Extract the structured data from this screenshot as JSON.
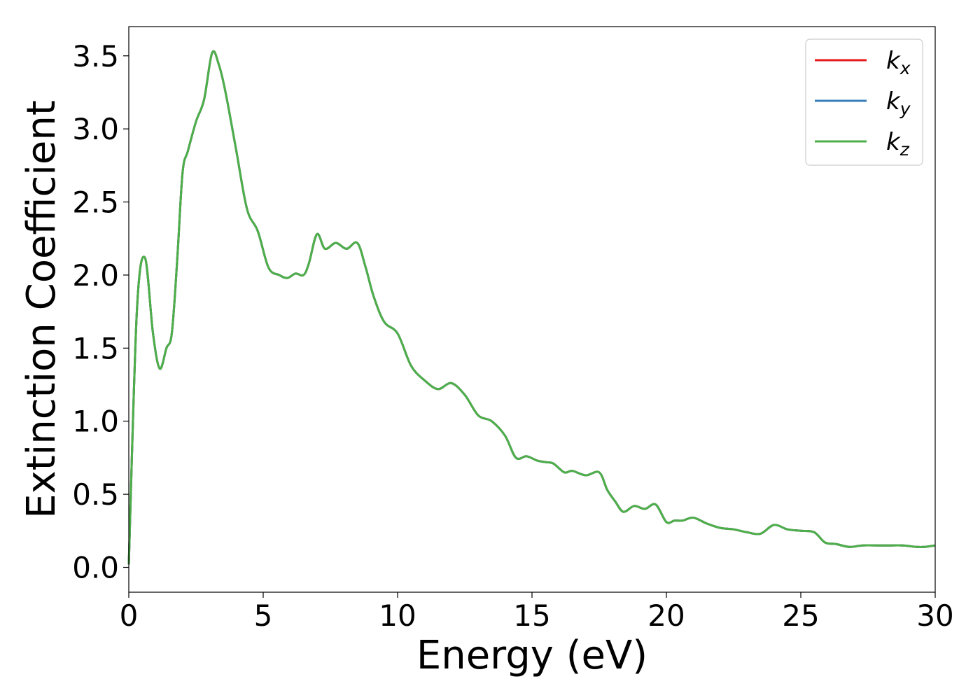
{
  "chart_data": {
    "type": "line",
    "title": "",
    "xlabel": "Energy (eV)",
    "ylabel": "Extinction Coefficient",
    "xlim": [
      0,
      30
    ],
    "ylim": [
      -0.17,
      3.7
    ],
    "xticks": [
      0,
      5,
      10,
      15,
      20,
      25,
      30
    ],
    "xtick_labels": [
      "0",
      "5",
      "10",
      "15",
      "20",
      "25",
      "30"
    ],
    "yticks": [
      0.0,
      0.5,
      1.0,
      1.5,
      2.0,
      2.5,
      3.0,
      3.5
    ],
    "ytick_labels": [
      "0.0",
      "0.5",
      "1.0",
      "1.5",
      "2.0",
      "2.5",
      "3.0",
      "3.5"
    ],
    "grid": false,
    "legend_position": "top-right",
    "x": [
      0,
      0.3,
      0.6,
      0.9,
      1.15,
      1.4,
      1.6,
      1.8,
      2.0,
      2.2,
      2.5,
      2.8,
      3.1,
      3.35,
      3.6,
      4.0,
      4.4,
      4.8,
      5.2,
      5.6,
      5.9,
      6.2,
      6.5,
      6.7,
      7.0,
      7.3,
      7.7,
      8.1,
      8.5,
      8.8,
      9.1,
      9.5,
      10.0,
      10.5,
      11.0,
      11.5,
      12.0,
      12.5,
      13.0,
      13.5,
      14.0,
      14.4,
      14.8,
      15.2,
      15.5,
      15.8,
      16.2,
      16.5,
      17.0,
      17.5,
      17.8,
      18.1,
      18.4,
      18.8,
      19.2,
      19.6,
      20.0,
      20.3,
      20.6,
      21.0,
      21.5,
      22.0,
      22.5,
      23.0,
      23.5,
      24.0,
      24.5,
      25.0,
      25.5,
      25.9,
      26.3,
      26.8,
      27.3,
      27.9,
      28.3,
      28.8,
      29.3,
      29.6,
      30.0
    ],
    "series": [
      {
        "name": "k_x",
        "color": "#e41a1c",
        "values": [
          0.02,
          1.75,
          2.12,
          1.6,
          1.36,
          1.5,
          1.6,
          2.1,
          2.7,
          2.85,
          3.05,
          3.2,
          3.52,
          3.44,
          3.25,
          2.85,
          2.45,
          2.3,
          2.05,
          2.0,
          1.98,
          2.01,
          2.0,
          2.08,
          2.28,
          2.18,
          2.22,
          2.18,
          2.22,
          2.06,
          1.86,
          1.68,
          1.6,
          1.38,
          1.28,
          1.22,
          1.26,
          1.18,
          1.04,
          1.0,
          0.9,
          0.75,
          0.76,
          0.73,
          0.72,
          0.71,
          0.65,
          0.66,
          0.63,
          0.65,
          0.53,
          0.45,
          0.38,
          0.42,
          0.4,
          0.43,
          0.31,
          0.32,
          0.32,
          0.34,
          0.3,
          0.27,
          0.26,
          0.24,
          0.23,
          0.29,
          0.26,
          0.25,
          0.24,
          0.17,
          0.16,
          0.14,
          0.15,
          0.15,
          0.15,
          0.15,
          0.14,
          0.14,
          0.15
        ]
      },
      {
        "name": "k_y",
        "color": "#377eb8",
        "values": [
          0.02,
          1.75,
          2.12,
          1.6,
          1.36,
          1.5,
          1.6,
          2.1,
          2.7,
          2.85,
          3.05,
          3.2,
          3.52,
          3.44,
          3.25,
          2.85,
          2.45,
          2.3,
          2.05,
          2.0,
          1.98,
          2.01,
          2.0,
          2.08,
          2.28,
          2.18,
          2.22,
          2.18,
          2.22,
          2.06,
          1.86,
          1.68,
          1.6,
          1.38,
          1.28,
          1.22,
          1.26,
          1.18,
          1.04,
          1.0,
          0.9,
          0.75,
          0.76,
          0.73,
          0.72,
          0.71,
          0.65,
          0.66,
          0.63,
          0.65,
          0.53,
          0.45,
          0.38,
          0.42,
          0.4,
          0.43,
          0.31,
          0.32,
          0.32,
          0.34,
          0.3,
          0.27,
          0.26,
          0.24,
          0.23,
          0.29,
          0.26,
          0.25,
          0.24,
          0.17,
          0.16,
          0.14,
          0.15,
          0.15,
          0.15,
          0.15,
          0.14,
          0.14,
          0.15
        ]
      },
      {
        "name": "k_z",
        "color": "#4daf4a",
        "values": [
          0.02,
          1.75,
          2.12,
          1.6,
          1.36,
          1.5,
          1.6,
          2.1,
          2.7,
          2.85,
          3.05,
          3.2,
          3.52,
          3.44,
          3.25,
          2.85,
          2.45,
          2.3,
          2.05,
          2.0,
          1.98,
          2.01,
          2.0,
          2.08,
          2.28,
          2.18,
          2.22,
          2.18,
          2.22,
          2.06,
          1.86,
          1.68,
          1.6,
          1.38,
          1.28,
          1.22,
          1.26,
          1.18,
          1.04,
          1.0,
          0.9,
          0.75,
          0.76,
          0.73,
          0.72,
          0.71,
          0.65,
          0.66,
          0.63,
          0.65,
          0.53,
          0.45,
          0.38,
          0.42,
          0.4,
          0.43,
          0.31,
          0.32,
          0.32,
          0.34,
          0.3,
          0.27,
          0.26,
          0.24,
          0.23,
          0.29,
          0.26,
          0.25,
          0.24,
          0.17,
          0.16,
          0.14,
          0.15,
          0.15,
          0.15,
          0.15,
          0.14,
          0.14,
          0.15
        ]
      }
    ],
    "legend": [
      {
        "base": "k",
        "sub": "x",
        "color": "#e41a1c"
      },
      {
        "base": "k",
        "sub": "y",
        "color": "#377eb8"
      },
      {
        "base": "k",
        "sub": "z",
        "color": "#4daf4a"
      }
    ]
  }
}
